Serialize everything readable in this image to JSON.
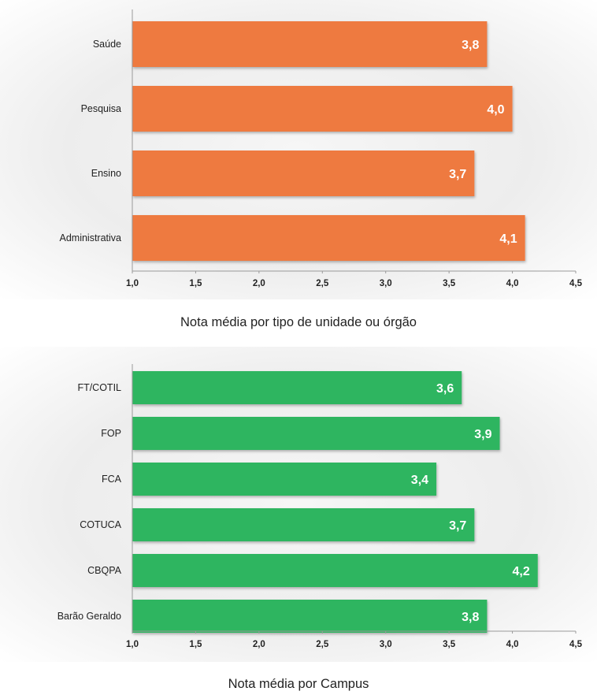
{
  "chart_data": [
    {
      "type": "bar",
      "orientation": "horizontal",
      "title": "Nota média por tipo de unidade ou órgão",
      "categories": [
        "Saúde",
        "Pesquisa",
        "Ensino",
        "Administrativa"
      ],
      "values": [
        3.8,
        4.0,
        3.7,
        4.1
      ],
      "value_labels": [
        "3,8",
        "4,0",
        "3,7",
        "4,1"
      ],
      "xlim": [
        1.0,
        4.5
      ],
      "xticks": [
        1.0,
        1.5,
        2.0,
        2.5,
        3.0,
        3.5,
        4.0,
        4.5
      ],
      "xtick_labels": [
        "1,0",
        "1,5",
        "2,0",
        "2,5",
        "3,0",
        "3,5",
        "4,0",
        "4,5"
      ],
      "bar_color": "#ee7a40",
      "grid": false
    },
    {
      "type": "bar",
      "orientation": "horizontal",
      "title": "Nota média por Campus",
      "categories": [
        "FT/COTIL",
        "FOP",
        "FCA",
        "COTUCA",
        "CBQPA",
        "Barão Geraldo"
      ],
      "values": [
        3.6,
        3.9,
        3.4,
        3.7,
        4.2,
        3.8
      ],
      "value_labels": [
        "3,6",
        "3,9",
        "3,4",
        "3,7",
        "4,2",
        "3,8"
      ],
      "xlim": [
        1.0,
        4.5
      ],
      "xticks": [
        1.0,
        1.5,
        2.0,
        2.5,
        3.0,
        3.5,
        4.0,
        4.5
      ],
      "xtick_labels": [
        "1,0",
        "1,5",
        "2,0",
        "2,5",
        "3,0",
        "3,5",
        "4,0",
        "4,5"
      ],
      "bar_color": "#2db560",
      "grid": false
    }
  ]
}
